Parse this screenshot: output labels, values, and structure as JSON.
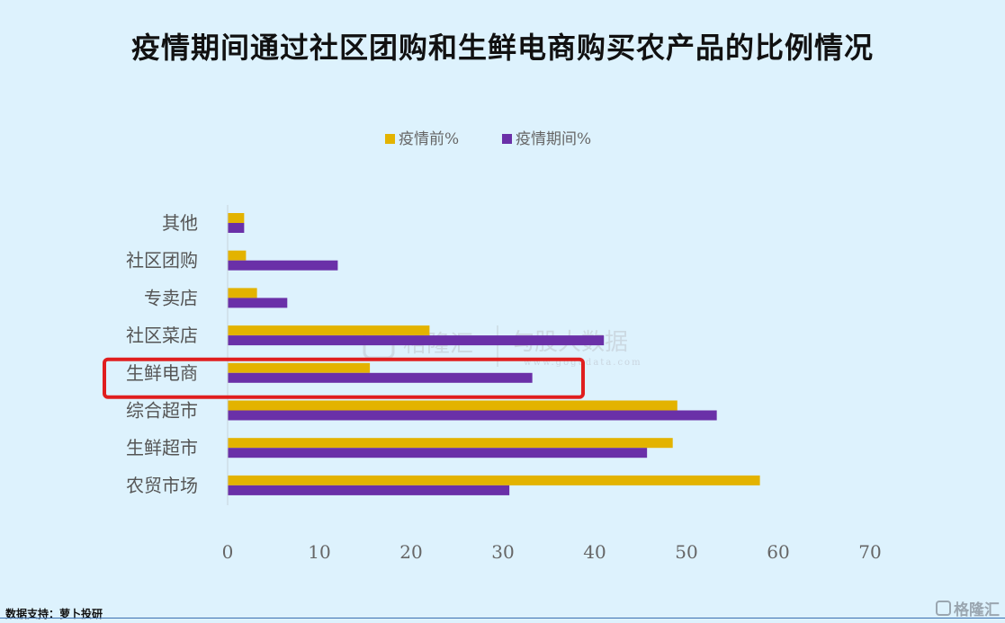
{
  "title": "疫情期间通过社区团购和生鲜电商购买农产品的比例情况",
  "source": "数据支持：萝卜投研",
  "logo": {
    "text": "格隆汇"
  },
  "watermark": {
    "brand": "格隆汇",
    "sub": "勾股大数据",
    "url": "www.gogudata.com"
  },
  "colors": {
    "before": "#e3b300",
    "during": "#6a30a8",
    "highlight": "#e01e1e",
    "background": "#ddf2fd"
  },
  "chart_data": {
    "type": "bar",
    "orientation": "horizontal",
    "categories": [
      "其他",
      "社区团购",
      "专卖店",
      "社区菜店",
      "生鲜电商",
      "综合超市",
      "生鲜超市",
      "农贸市场"
    ],
    "series": [
      {
        "name": "疫情前%",
        "values": [
          1.8,
          2.0,
          3.2,
          22.0,
          15.5,
          49.0,
          48.5,
          58.0
        ]
      },
      {
        "name": "疫情期间%",
        "values": [
          1.8,
          12.0,
          6.5,
          41.0,
          33.2,
          53.3,
          45.7,
          30.7
        ]
      }
    ],
    "xlim": [
      0,
      70
    ],
    "xticks": [
      "0",
      "10",
      "20",
      "30",
      "40",
      "50",
      "60",
      "70"
    ],
    "legend_position": "top",
    "grid": false,
    "highlighted_category": "生鲜电商"
  }
}
